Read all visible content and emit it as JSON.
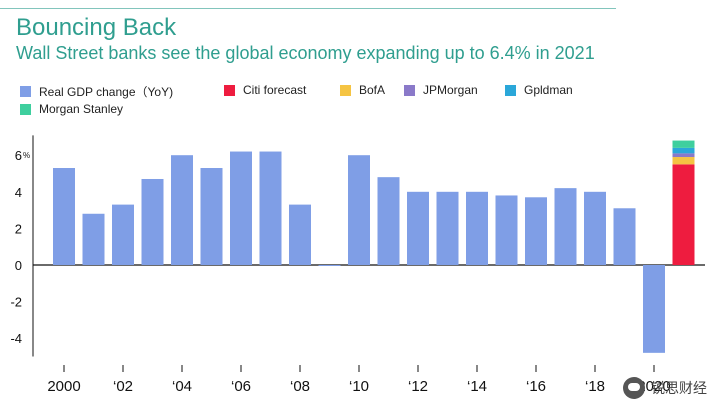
{
  "chart_data": {
    "type": "bar",
    "title": "Bouncing Back",
    "subtitle": "Wall Street banks see the global economy expanding up to 6.4% in 2021",
    "legend": [
      {
        "name": "Real GDP change（YoY)",
        "color": "#7f9ee6"
      },
      {
        "name": "Citi forecast",
        "color": "#ee1c3f"
      },
      {
        "name": "BofA",
        "color": "#f5c443"
      },
      {
        "name": "JPMorgan",
        "color": "#8a79c9"
      },
      {
        "name": "Gpldman",
        "color": "#2aa7d9"
      },
      {
        "name": "Morgan Stanley",
        "color": "#3ecf9e"
      }
    ],
    "years": [
      2000,
      2001,
      2002,
      2003,
      2004,
      2005,
      2006,
      2007,
      2008,
      2009,
      2010,
      2011,
      2012,
      2013,
      2014,
      2015,
      2016,
      2017,
      2018,
      2019,
      2020
    ],
    "values": [
      5.3,
      2.8,
      3.3,
      4.7,
      6.0,
      5.3,
      6.2,
      6.2,
      3.3,
      0.0,
      6.0,
      4.8,
      4.0,
      4.0,
      4.0,
      3.8,
      3.7,
      4.2,
      4.0,
      3.1,
      -4.8
    ],
    "forecast_2021": [
      {
        "name": "Citi forecast",
        "value": 5.5,
        "color": "#ee1c3f"
      },
      {
        "name": "BofA",
        "value": 0.4,
        "color": "#f5c443"
      },
      {
        "name": "JPMorgan",
        "value": 0.2,
        "color": "#8a79c9"
      },
      {
        "name": "Gpldman",
        "value": 0.3,
        "color": "#2aa7d9"
      },
      {
        "name": "Morgan Stanley",
        "value": 0.4,
        "color": "#3ecf9e"
      }
    ],
    "y_ticks": [
      "6",
      "4",
      "2",
      "0",
      "-2",
      "-4"
    ],
    "y_tick_values": [
      6,
      4,
      2,
      0,
      -2,
      -4
    ],
    "y_unit": "%",
    "x_tick_labels": [
      "2000",
      "‘02",
      "‘04",
      "‘06",
      "‘08",
      "‘10",
      "‘12",
      "‘14",
      "‘16",
      "‘18",
      "2020"
    ],
    "x_tick_years": [
      2000,
      2002,
      2004,
      2006,
      2008,
      2010,
      2012,
      2014,
      2016,
      2018,
      2020
    ],
    "ylim": [
      -5,
      7.3
    ],
    "bar_color": "#7f9ee6"
  },
  "watermark": {
    "text": "锐思财经"
  }
}
